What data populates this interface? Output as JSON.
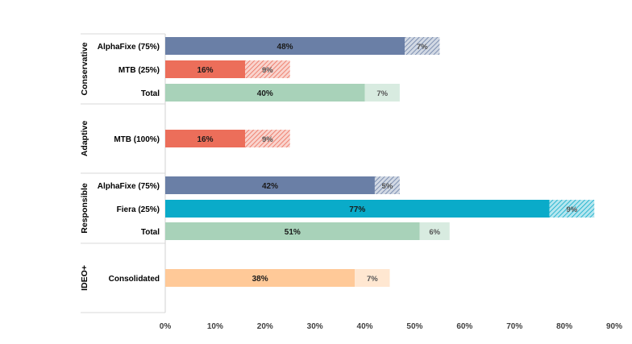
{
  "chart_data": {
    "type": "bar",
    "orientation": "horizontal",
    "stacked": true,
    "xlim": [
      0,
      90
    ],
    "x_ticks": [
      {
        "value": 0,
        "label": "0%"
      },
      {
        "value": 10,
        "label": "10%"
      },
      {
        "value": 20,
        "label": "20%"
      },
      {
        "value": 30,
        "label": "30%"
      },
      {
        "value": 40,
        "label": "40%"
      },
      {
        "value": 50,
        "label": "50%"
      },
      {
        "value": 60,
        "label": "60%"
      },
      {
        "value": 70,
        "label": "70%"
      },
      {
        "value": 80,
        "label": "80%"
      },
      {
        "value": 90,
        "label": "90%"
      }
    ],
    "grid": false,
    "legend": "none",
    "groups": [
      {
        "name": "Conservative",
        "rows": [
          {
            "label": "AlphaFixe (75%)",
            "primary": 48,
            "primary_label": "48%",
            "secondary": 7,
            "secondary_label": "7%",
            "color": "#6a7fa6",
            "secondary_style": "hatched"
          },
          {
            "label": "MTB (25%)",
            "primary": 16,
            "primary_label": "16%",
            "secondary": 9,
            "secondary_label": "9%",
            "color": "#ec6e5a",
            "secondary_style": "hatched"
          },
          {
            "label": "Total",
            "primary": 40,
            "primary_label": "40%",
            "secondary": 7,
            "secondary_label": "7%",
            "color": "#a8d2b9",
            "secondary_style": "light"
          }
        ]
      },
      {
        "name": "Adaptive",
        "rows": [
          {
            "label": "MTB (100%)",
            "primary": 16,
            "primary_label": "16%",
            "secondary": 9,
            "secondary_label": "9%",
            "color": "#ec6e5a",
            "secondary_style": "hatched"
          }
        ]
      },
      {
        "name": "Responsible",
        "rows": [
          {
            "label": "AlphaFixe (75%)",
            "primary": 42,
            "primary_label": "42%",
            "secondary": 5,
            "secondary_label": "5%",
            "color": "#6a7fa6",
            "secondary_style": "hatched"
          },
          {
            "label": "Fiera (25%)",
            "primary": 77,
            "primary_label": "77%",
            "secondary": 9,
            "secondary_label": "9%",
            "color": "#0aabc9",
            "secondary_style": "hatched"
          },
          {
            "label": "Total",
            "primary": 51,
            "primary_label": "51%",
            "secondary": 6,
            "secondary_label": "6%",
            "color": "#a8d2b9",
            "secondary_style": "light"
          }
        ]
      },
      {
        "name": "IDEO+",
        "rows": [
          {
            "label": "Consolidated",
            "primary": 38,
            "primary_label": "38%",
            "secondary": 7,
            "secondary_label": "7%",
            "color": "#ffc998",
            "secondary_style": "light"
          }
        ]
      }
    ]
  }
}
